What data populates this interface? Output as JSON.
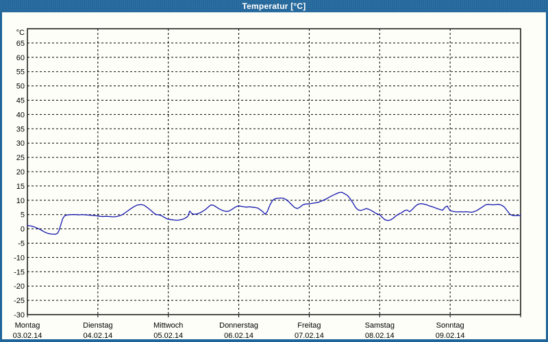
{
  "window": {
    "title": "Temperatur [°C]",
    "titlebar_color": "#20659a",
    "background_color": "#fcfef7"
  },
  "chart_data": {
    "type": "line",
    "title": "Temperatur [°C]",
    "xlabel": "",
    "ylabel": "°C",
    "grid": true,
    "line_color": "#1414b0",
    "grid_color": "#000000",
    "frame_color": "#000000",
    "ylim": [
      -30,
      70
    ],
    "y_axis": {
      "unit_label": "°C",
      "tick_step": 5,
      "tick_labels": [
        65,
        60,
        55,
        50,
        45,
        40,
        35,
        30,
        25,
        20,
        15,
        10,
        5,
        0,
        -5,
        -10,
        -15,
        -20,
        -25,
        -30
      ]
    },
    "x_axis": {
      "hours_total": 168,
      "days": [
        {
          "label": "Montag",
          "date": "03.02.14"
        },
        {
          "label": "Dienstag",
          "date": "04.02.14"
        },
        {
          "label": "Mittwoch",
          "date": "05.02.14"
        },
        {
          "label": "Donnerstag",
          "date": "06.02.14"
        },
        {
          "label": "Freitag",
          "date": "07.02.14"
        },
        {
          "label": "Samstag",
          "date": "08.02.14"
        },
        {
          "label": "Sonntag",
          "date": "09.02.14"
        }
      ]
    },
    "series": [
      {
        "name": "Temperatur",
        "color": "#1414b0",
        "points": [
          [
            0,
            1.2
          ],
          [
            1.2,
            1.0
          ],
          [
            2.3,
            0.7
          ],
          [
            3.5,
            0.2
          ],
          [
            4.7,
            -0.4
          ],
          [
            5.8,
            -1.1
          ],
          [
            7.0,
            -1.6
          ],
          [
            8.2,
            -1.8
          ],
          [
            9.3,
            -1.9
          ],
          [
            9.8,
            -1.8
          ],
          [
            10.3,
            -1.5
          ],
          [
            10.8,
            -0.5
          ],
          [
            11.4,
            1.5
          ],
          [
            12.0,
            3.5
          ],
          [
            12.6,
            4.5
          ],
          [
            13.3,
            4.8
          ],
          [
            14.0,
            4.9
          ],
          [
            15.2,
            5.0
          ],
          [
            16.3,
            5.0
          ],
          [
            17.5,
            4.9
          ],
          [
            18.7,
            5.0
          ],
          [
            19.8,
            4.9
          ],
          [
            21.0,
            4.8
          ],
          [
            22.2,
            4.7
          ],
          [
            23.3,
            4.6
          ],
          [
            24.0,
            4.5
          ],
          [
            24.7,
            4.4
          ],
          [
            25.7,
            4.3
          ],
          [
            26.8,
            4.4
          ],
          [
            28.0,
            4.3
          ],
          [
            29.2,
            4.2
          ],
          [
            30.3,
            4.3
          ],
          [
            31.5,
            4.6
          ],
          [
            32.7,
            5.2
          ],
          [
            33.8,
            6.0
          ],
          [
            35.0,
            6.9
          ],
          [
            36.2,
            7.7
          ],
          [
            37.3,
            8.3
          ],
          [
            38.5,
            8.5
          ],
          [
            39.7,
            8.3
          ],
          [
            40.8,
            7.5
          ],
          [
            42.0,
            6.5
          ],
          [
            43.2,
            5.4
          ],
          [
            43.9,
            5.0
          ],
          [
            44.8,
            4.9
          ],
          [
            45.7,
            4.6
          ],
          [
            46.7,
            4.0
          ],
          [
            47.6,
            3.5
          ],
          [
            48.0,
            3.4
          ],
          [
            49.0,
            3.2
          ],
          [
            49.9,
            3.1
          ],
          [
            50.9,
            3.0
          ],
          [
            51.8,
            3.1
          ],
          [
            52.7,
            3.3
          ],
          [
            53.7,
            3.7
          ],
          [
            54.6,
            4.3
          ],
          [
            55.3,
            6.2
          ],
          [
            56.0,
            5.4
          ],
          [
            56.7,
            5.1
          ],
          [
            57.6,
            5.2
          ],
          [
            58.6,
            5.5
          ],
          [
            59.5,
            6.0
          ],
          [
            60.7,
            6.8
          ],
          [
            61.6,
            7.6
          ],
          [
            62.5,
            8.4
          ],
          [
            63.5,
            8.2
          ],
          [
            64.4,
            7.6
          ],
          [
            65.3,
            7.0
          ],
          [
            66.5,
            6.4
          ],
          [
            67.7,
            6.1
          ],
          [
            68.6,
            6.2
          ],
          [
            69.5,
            6.7
          ],
          [
            70.5,
            7.4
          ],
          [
            71.4,
            7.9
          ],
          [
            72.0,
            8.1
          ],
          [
            72.8,
            7.9
          ],
          [
            73.7,
            7.7
          ],
          [
            74.7,
            7.6
          ],
          [
            75.6,
            7.7
          ],
          [
            76.5,
            7.6
          ],
          [
            77.5,
            7.5
          ],
          [
            78.4,
            7.3
          ],
          [
            79.3,
            6.7
          ],
          [
            80.3,
            5.9
          ],
          [
            81.0,
            5.1
          ],
          [
            81.7,
            6.0
          ],
          [
            82.6,
            8.3
          ],
          [
            83.5,
            10.0
          ],
          [
            84.5,
            10.6
          ],
          [
            85.4,
            10.7
          ],
          [
            86.3,
            10.8
          ],
          [
            87.3,
            10.7
          ],
          [
            88.2,
            10.2
          ],
          [
            89.1,
            9.4
          ],
          [
            90.1,
            8.4
          ],
          [
            91.0,
            7.5
          ],
          [
            91.9,
            7.1
          ],
          [
            92.9,
            7.6
          ],
          [
            93.8,
            8.4
          ],
          [
            94.7,
            8.7
          ],
          [
            96.0,
            8.7
          ],
          [
            96.8,
            8.9
          ],
          [
            98.0,
            9.1
          ],
          [
            99.2,
            9.3
          ],
          [
            100.3,
            9.8
          ],
          [
            101.5,
            10.3
          ],
          [
            102.7,
            11.0
          ],
          [
            103.8,
            11.6
          ],
          [
            105.0,
            12.2
          ],
          [
            106.2,
            12.7
          ],
          [
            107.1,
            12.8
          ],
          [
            108.0,
            12.3
          ],
          [
            109.0,
            11.7
          ],
          [
            109.9,
            10.6
          ],
          [
            110.8,
            9.2
          ],
          [
            111.8,
            7.5
          ],
          [
            112.7,
            6.6
          ],
          [
            113.6,
            6.4
          ],
          [
            114.6,
            6.8
          ],
          [
            115.5,
            7.1
          ],
          [
            116.4,
            6.8
          ],
          [
            117.4,
            6.3
          ],
          [
            118.3,
            5.7
          ],
          [
            119.2,
            5.2
          ],
          [
            120.0,
            5.0
          ],
          [
            120.9,
            4.0
          ],
          [
            121.8,
            3.2
          ],
          [
            122.7,
            2.9
          ],
          [
            123.7,
            3.1
          ],
          [
            124.6,
            3.7
          ],
          [
            125.5,
            4.5
          ],
          [
            126.5,
            5.2
          ],
          [
            127.4,
            5.6
          ],
          [
            128.3,
            6.3
          ],
          [
            129.3,
            6.6
          ],
          [
            130.2,
            6.0
          ],
          [
            131.1,
            6.8
          ],
          [
            132.1,
            7.9
          ],
          [
            133.0,
            8.6
          ],
          [
            133.9,
            8.8
          ],
          [
            134.9,
            8.7
          ],
          [
            135.8,
            8.5
          ],
          [
            136.7,
            8.1
          ],
          [
            137.7,
            7.8
          ],
          [
            138.6,
            7.5
          ],
          [
            139.5,
            7.1
          ],
          [
            140.5,
            6.8
          ],
          [
            141.4,
            6.5
          ],
          [
            142.3,
            7.6
          ],
          [
            143.0,
            8.0
          ],
          [
            143.5,
            7.1
          ],
          [
            144.0,
            6.4
          ],
          [
            144.7,
            6.2
          ],
          [
            145.6,
            6.0
          ],
          [
            146.5,
            5.9
          ],
          [
            147.5,
            6.0
          ],
          [
            148.4,
            5.9
          ],
          [
            149.3,
            6.0
          ],
          [
            150.3,
            5.9
          ],
          [
            151.2,
            5.8
          ],
          [
            152.1,
            6.0
          ],
          [
            153.1,
            6.4
          ],
          [
            154.0,
            7.0
          ],
          [
            154.9,
            7.6
          ],
          [
            155.9,
            8.3
          ],
          [
            156.8,
            8.6
          ],
          [
            157.7,
            8.5
          ],
          [
            158.7,
            8.4
          ],
          [
            159.6,
            8.5
          ],
          [
            160.5,
            8.6
          ],
          [
            161.5,
            8.3
          ],
          [
            162.4,
            7.7
          ],
          [
            163.3,
            6.5
          ],
          [
            164.3,
            5.2
          ],
          [
            165.2,
            4.7
          ],
          [
            166.1,
            4.6
          ],
          [
            167.1,
            4.7
          ],
          [
            168.0,
            4.6
          ]
        ]
      }
    ]
  }
}
